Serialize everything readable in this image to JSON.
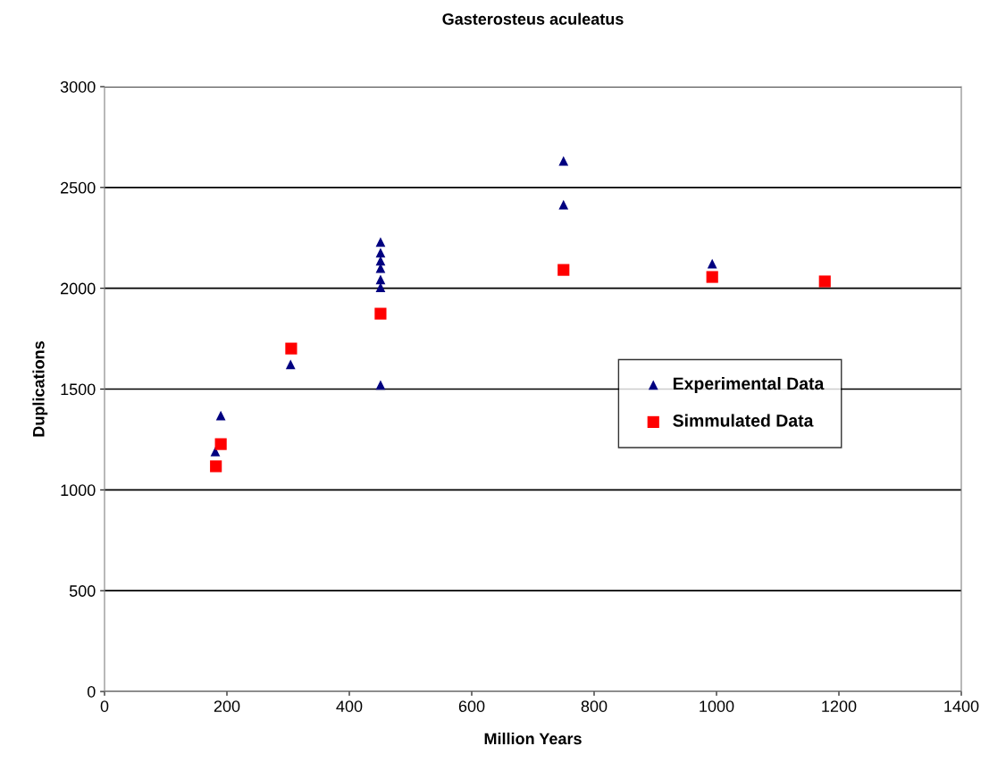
{
  "chart_data": {
    "type": "scatter",
    "title": "Gasterosteus aculeatus",
    "xlabel": "Million Years",
    "ylabel": "Duplications",
    "xlim": [
      0,
      1400
    ],
    "xticks": [
      0,
      200,
      400,
      600,
      800,
      1000,
      1200,
      1400
    ],
    "ylim": [
      0,
      3000
    ],
    "yticks": [
      0,
      500,
      1000,
      1500,
      2000,
      2500,
      3000
    ],
    "grid": "y",
    "legend": "right",
    "series": [
      {
        "name": "Experimental Data",
        "color": "#000080",
        "marker": "triangle",
        "x": [
          181,
          190,
          304,
          451,
          451,
          451,
          451,
          451,
          451,
          451,
          750,
          750,
          993
        ],
        "values": [
          1190,
          1369,
          1622,
          2230,
          2176,
          2136,
          2100,
          2043,
          2005,
          1520,
          2632,
          2415,
          2122
        ]
      },
      {
        "name": "Simmulated Data",
        "color": "#ff0000",
        "marker": "square",
        "x": [
          182,
          190,
          305,
          451,
          750,
          993,
          1177
        ],
        "values": [
          1117,
          1227,
          1701,
          1874,
          2091,
          2056,
          2034
        ]
      }
    ]
  }
}
